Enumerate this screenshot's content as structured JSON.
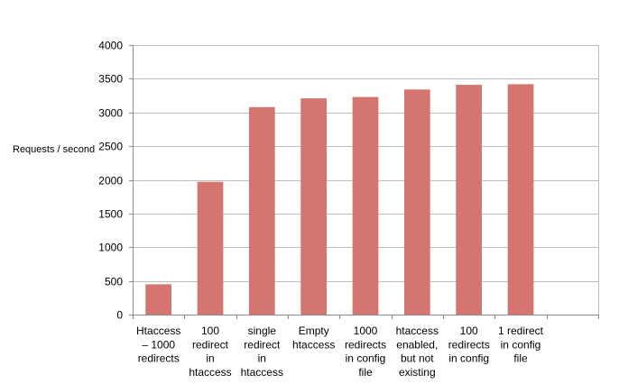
{
  "chart_data": {
    "type": "bar",
    "title": "",
    "xlabel": "",
    "ylabel": "Requests / second",
    "ylim": [
      0,
      4000
    ],
    "yticks": [
      0,
      500,
      1000,
      1500,
      2000,
      2500,
      3000,
      3500,
      4000
    ],
    "grid": true,
    "legend": "none",
    "bar_color": "#d4766f",
    "categories": [
      [
        "Htaccess",
        "– 1000",
        "redirects"
      ],
      [
        "100",
        "redirect",
        "in",
        "htaccess"
      ],
      [
        "single",
        "redirect",
        "in",
        "htaccess"
      ],
      [
        "Empty",
        "htaccess"
      ],
      [
        "1000",
        "redirects",
        "in config",
        "file"
      ],
      [
        "htaccess",
        "enabled,",
        "but not",
        "existing"
      ],
      [
        "100",
        "redirects",
        "in config"
      ],
      [
        "1 redirect",
        "in config",
        "file"
      ],
      [
        ""
      ]
    ],
    "values": [
      450,
      1970,
      3080,
      3210,
      3230,
      3340,
      3410,
      3420,
      null
    ]
  }
}
